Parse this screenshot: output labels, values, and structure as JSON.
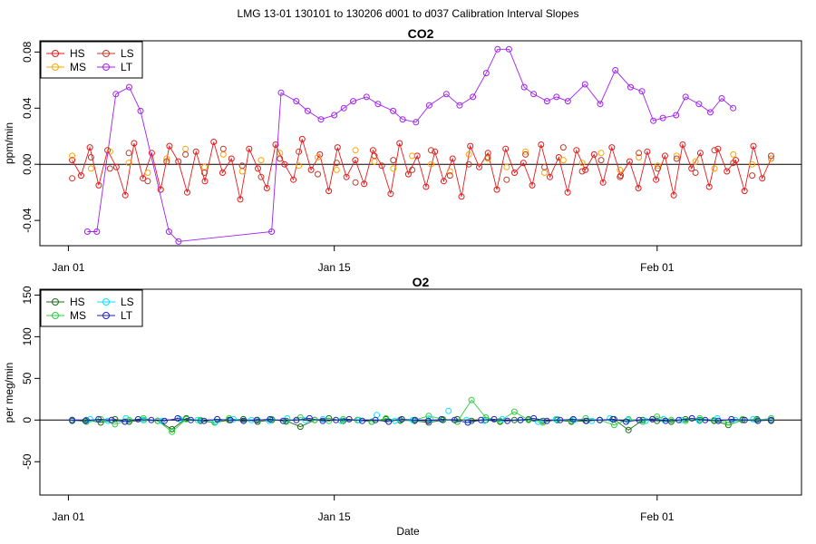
{
  "header": {
    "title": "LMG   13-01    130101 to 130206    d001 to d037   Calibration Interval Slopes"
  },
  "xaxis": {
    "label": "Date",
    "ticks": [
      {
        "day": 0,
        "label": "Jan 01"
      },
      {
        "day": 14,
        "label": "Jan 15"
      },
      {
        "day": 31,
        "label": "Feb 01"
      }
    ]
  },
  "chart_data": [
    {
      "type": "line",
      "title": "CO2",
      "ylabel": "ppm/min",
      "xlabel": "",
      "xlim_days": [
        -1.5,
        38.6
      ],
      "ylim": [
        -0.058,
        0.088
      ],
      "yticks": [
        -0.04,
        0.0,
        0.04,
        0.08
      ],
      "ytick_labels": [
        "-0.04",
        "0.00",
        "0.04",
        "0.08"
      ],
      "zero_line": true,
      "legend": {
        "position": "top-left",
        "columns": 2,
        "entries": [
          "HS",
          "MS",
          "LS",
          "LT"
        ]
      },
      "series": [
        {
          "name": "HS",
          "color": "#e41a1c",
          "connected": true,
          "values": [
            0.003,
            -0.008,
            0.012,
            -0.015,
            0.01,
            -0.002,
            -0.022,
            0.015,
            -0.01,
            0.008,
            -0.018,
            0.013,
            0.002,
            -0.02,
            0.009,
            -0.012,
            0.016,
            -0.006,
            0.004,
            -0.025,
            0.011,
            -0.003,
            -0.017,
            0.014,
            0.0,
            -0.011,
            0.018,
            -0.004,
            0.007,
            -0.019,
            0.012,
            -0.009,
            0.003,
            -0.014,
            0.01,
            -0.001,
            -0.021,
            0.015,
            -0.007,
            0.006,
            -0.016,
            0.009,
            -0.012,
            0.004,
            -0.023,
            0.013,
            -0.002,
            0.008,
            -0.018,
            0.011,
            -0.006,
            0.001,
            -0.015,
            0.014,
            -0.009,
            0.005,
            -0.02,
            0.01,
            -0.004,
            0.007,
            -0.013,
            0.012,
            -0.008,
            0.002,
            -0.017,
            0.009,
            -0.011,
            0.006,
            -0.022,
            0.014,
            -0.003,
            0.008,
            -0.016,
            0.011,
            -0.005,
            0.003,
            -0.019,
            0.013,
            -0.01,
            0.004
          ]
        },
        {
          "name": "MS",
          "color": "#ffa500",
          "connected": false,
          "values": [
            0.006,
            -0.003,
            0.009,
            0.001,
            -0.006,
            0.004,
            0.011,
            -0.002,
            0.007,
            -0.005,
            0.003,
            0.008,
            -0.001,
            0.005,
            -0.004,
            0.01,
            0.002,
            -0.003,
            0.006,
            0.0,
            -0.005,
            0.007,
            0.004,
            -0.002,
            0.009,
            -0.006,
            0.003,
            0.001,
            0.008,
            -0.004,
            0.005,
            -0.001,
            0.006,
            0.002,
            -0.003,
            0.007,
            0.0,
            0.004
          ]
        },
        {
          "name": "LS",
          "color": "#c0392b",
          "connected": false,
          "values": [
            -0.01,
            0.005,
            -0.003,
            0.008,
            -0.012,
            0.002,
            0.007,
            -0.006,
            0.011,
            -0.001,
            -0.009,
            0.004,
            0.009,
            -0.007,
            0.001,
            -0.013,
            0.006,
            0.003,
            -0.004,
            0.01,
            -0.008,
            0.0,
            0.005,
            -0.011,
            0.007,
            -0.002,
            0.012,
            -0.005,
            0.003,
            -0.009,
            0.008,
            -0.003,
            0.004,
            -0.006,
            0.01,
            0.001,
            -0.008,
            0.006
          ]
        },
        {
          "name": "LT",
          "color": "#a020f0",
          "connected": true,
          "days": [
            1.0,
            1.5,
            2.5,
            3.2,
            3.8,
            5.3,
            5.8,
            10.7,
            11.2,
            12.0,
            12.6,
            13.3,
            14.0,
            14.5,
            15.0,
            15.7,
            16.3,
            17.1,
            17.6,
            18.3,
            19.0,
            19.9,
            20.6,
            21.3,
            22.0,
            22.6,
            23.2,
            24.0,
            24.5,
            25.2,
            25.7,
            26.3,
            27.2,
            28.0,
            28.8,
            29.6,
            30.2,
            30.8,
            31.3,
            32.0,
            32.5,
            33.2,
            33.8,
            34.4,
            35.0
          ],
          "values": [
            -0.048,
            -0.048,
            0.05,
            0.055,
            0.038,
            -0.048,
            -0.055,
            -0.048,
            0.051,
            0.045,
            0.038,
            0.032,
            0.035,
            0.04,
            0.045,
            0.048,
            0.043,
            0.038,
            0.032,
            0.03,
            0.042,
            0.05,
            0.042,
            0.048,
            0.065,
            0.082,
            0.082,
            0.055,
            0.05,
            0.045,
            0.048,
            0.045,
            0.057,
            0.043,
            0.067,
            0.055,
            0.052,
            0.031,
            0.033,
            0.035,
            0.048,
            0.043,
            0.037,
            0.047,
            0.04
          ]
        }
      ]
    },
    {
      "type": "line",
      "title": "O2",
      "ylabel": "per meg/min",
      "xlabel": "Date",
      "xlim_days": [
        -1.5,
        38.6
      ],
      "ylim": [
        -90,
        157
      ],
      "yticks": [
        -50,
        0,
        50,
        100,
        150
      ],
      "ytick_labels": [
        "-50",
        "0",
        "50",
        "100",
        "150"
      ],
      "zero_line": true,
      "legend": {
        "position": "top-left",
        "columns": 2,
        "entries": [
          "HS",
          "MS",
          "LS",
          "LT"
        ]
      },
      "series": [
        {
          "name": "HS",
          "color": "#1a6b1a",
          "connected": true,
          "values": [
            -1,
            0,
            -3,
            1,
            -2,
            0,
            -1,
            -11,
            2,
            -1,
            -3,
            0,
            1,
            -2,
            0,
            -1,
            -8,
            0,
            2,
            -1,
            0,
            -2,
            1,
            0,
            -1,
            -3,
            0,
            1,
            -1,
            0,
            -2,
            0,
            1,
            -1,
            0,
            -2,
            -1,
            0,
            1,
            -12,
            0,
            -1,
            -2,
            1,
            0,
            -1,
            -6,
            0,
            1,
            -1
          ]
        },
        {
          "name": "MS",
          "color": "#2ecc40",
          "connected": true,
          "values": [
            0,
            -2,
            1,
            -5,
            0,
            2,
            -1,
            -14,
            1,
            0,
            -3,
            2,
            -1,
            0,
            1,
            -2,
            3,
            0,
            -1,
            1,
            0,
            -2,
            2,
            -1,
            0,
            5,
            1,
            -2,
            24,
            3,
            -1,
            10,
            0,
            -3,
            1,
            -1,
            2,
            0,
            -6,
            1,
            -2,
            4,
            0,
            -1,
            2,
            0,
            -3,
            1,
            0,
            2
          ]
        },
        {
          "name": "LS",
          "color": "#00e5ff",
          "connected": false,
          "values": [
            0,
            1,
            -1,
            2,
            0,
            -1,
            1,
            0,
            -2,
            1,
            0,
            -1,
            2,
            0,
            1,
            -1,
            0,
            6,
            -1,
            0,
            1,
            11,
            0,
            -1,
            1,
            0,
            -2,
            1,
            0,
            -1,
            2,
            0,
            -1,
            1,
            0,
            -1,
            2,
            0,
            1,
            0
          ]
        },
        {
          "name": "LT",
          "color": "#1f1fbf",
          "connected": true,
          "values": [
            0,
            -1,
            1,
            0,
            -2,
            1,
            0,
            -1,
            2,
            0,
            -1,
            1,
            0,
            -1,
            0,
            1,
            -1,
            0,
            2,
            -1,
            0,
            1,
            -1,
            0,
            -2,
            1,
            0,
            -1,
            1,
            0,
            -3,
            0,
            1,
            -1,
            0,
            2,
            -1,
            0,
            1,
            -1,
            0,
            1,
            -2,
            0,
            1,
            -1,
            0,
            2,
            0,
            -1,
            1,
            0,
            -1,
            0
          ]
        }
      ]
    }
  ]
}
